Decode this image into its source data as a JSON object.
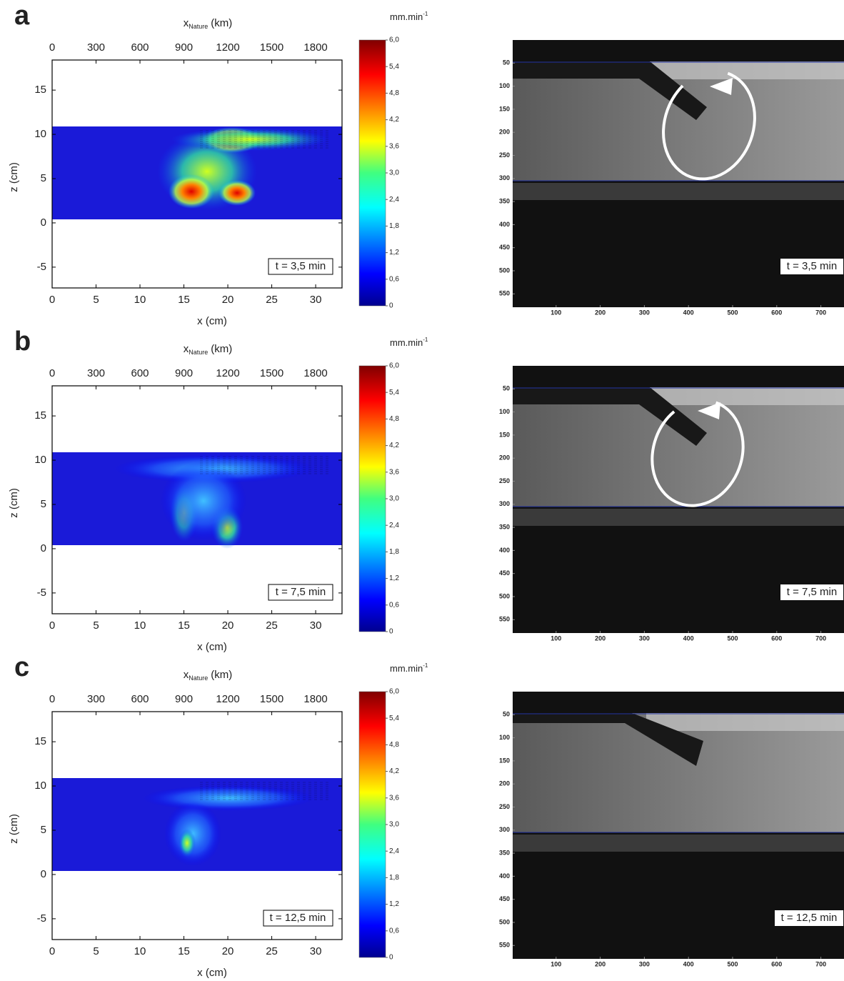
{
  "panels": [
    {
      "label": "a",
      "time": "t = 3,5 min"
    },
    {
      "label": "b",
      "time": "t = 7,5 min"
    },
    {
      "label": "c",
      "time": "t = 12,5 min"
    }
  ],
  "map": {
    "x_label": "x (cm)",
    "top_label_main": "x",
    "top_label_sub": "Nature",
    "top_label_unit": "(km)",
    "y_label": "z (cm)",
    "xlim": [
      0,
      33
    ],
    "xticks": [
      0,
      5,
      10,
      15,
      20,
      25,
      30
    ],
    "top_lim": [
      0,
      1980
    ],
    "top_ticks": [
      0,
      300,
      600,
      900,
      1200,
      1500,
      1800
    ],
    "ylim": [
      -7.35,
      18.4
    ],
    "yticks": [
      -5,
      0,
      5,
      10,
      15
    ]
  },
  "colorbar": {
    "unit_main": "mm.min",
    "unit_sup": "-1",
    "lim": [
      0,
      6
    ],
    "ticks": [
      0,
      {
        "value": 0.6,
        "label": "0,6"
      },
      {
        "value": 1.2,
        "label": "1,2"
      },
      {
        "value": 1.8,
        "label": "1,8"
      },
      {
        "value": 2.4,
        "label": "2,4"
      },
      {
        "value": 3,
        "label": "3,0"
      },
      {
        "value": 3.6,
        "label": "3,6"
      },
      {
        "value": 4.2,
        "label": "4,2"
      },
      {
        "value": 4.8,
        "label": "4,8"
      },
      {
        "value": 5.4,
        "label": "5,4"
      },
      {
        "value": 6,
        "label": "6,0"
      }
    ]
  },
  "photo": {
    "xlim": [
      0,
      750
    ],
    "xticks": [
      100,
      200,
      300,
      400,
      500,
      600,
      700
    ],
    "ylim": [
      0,
      579
    ],
    "yticks": [
      50,
      100,
      150,
      200,
      250,
      300,
      350,
      400,
      450,
      500,
      550
    ]
  }
}
